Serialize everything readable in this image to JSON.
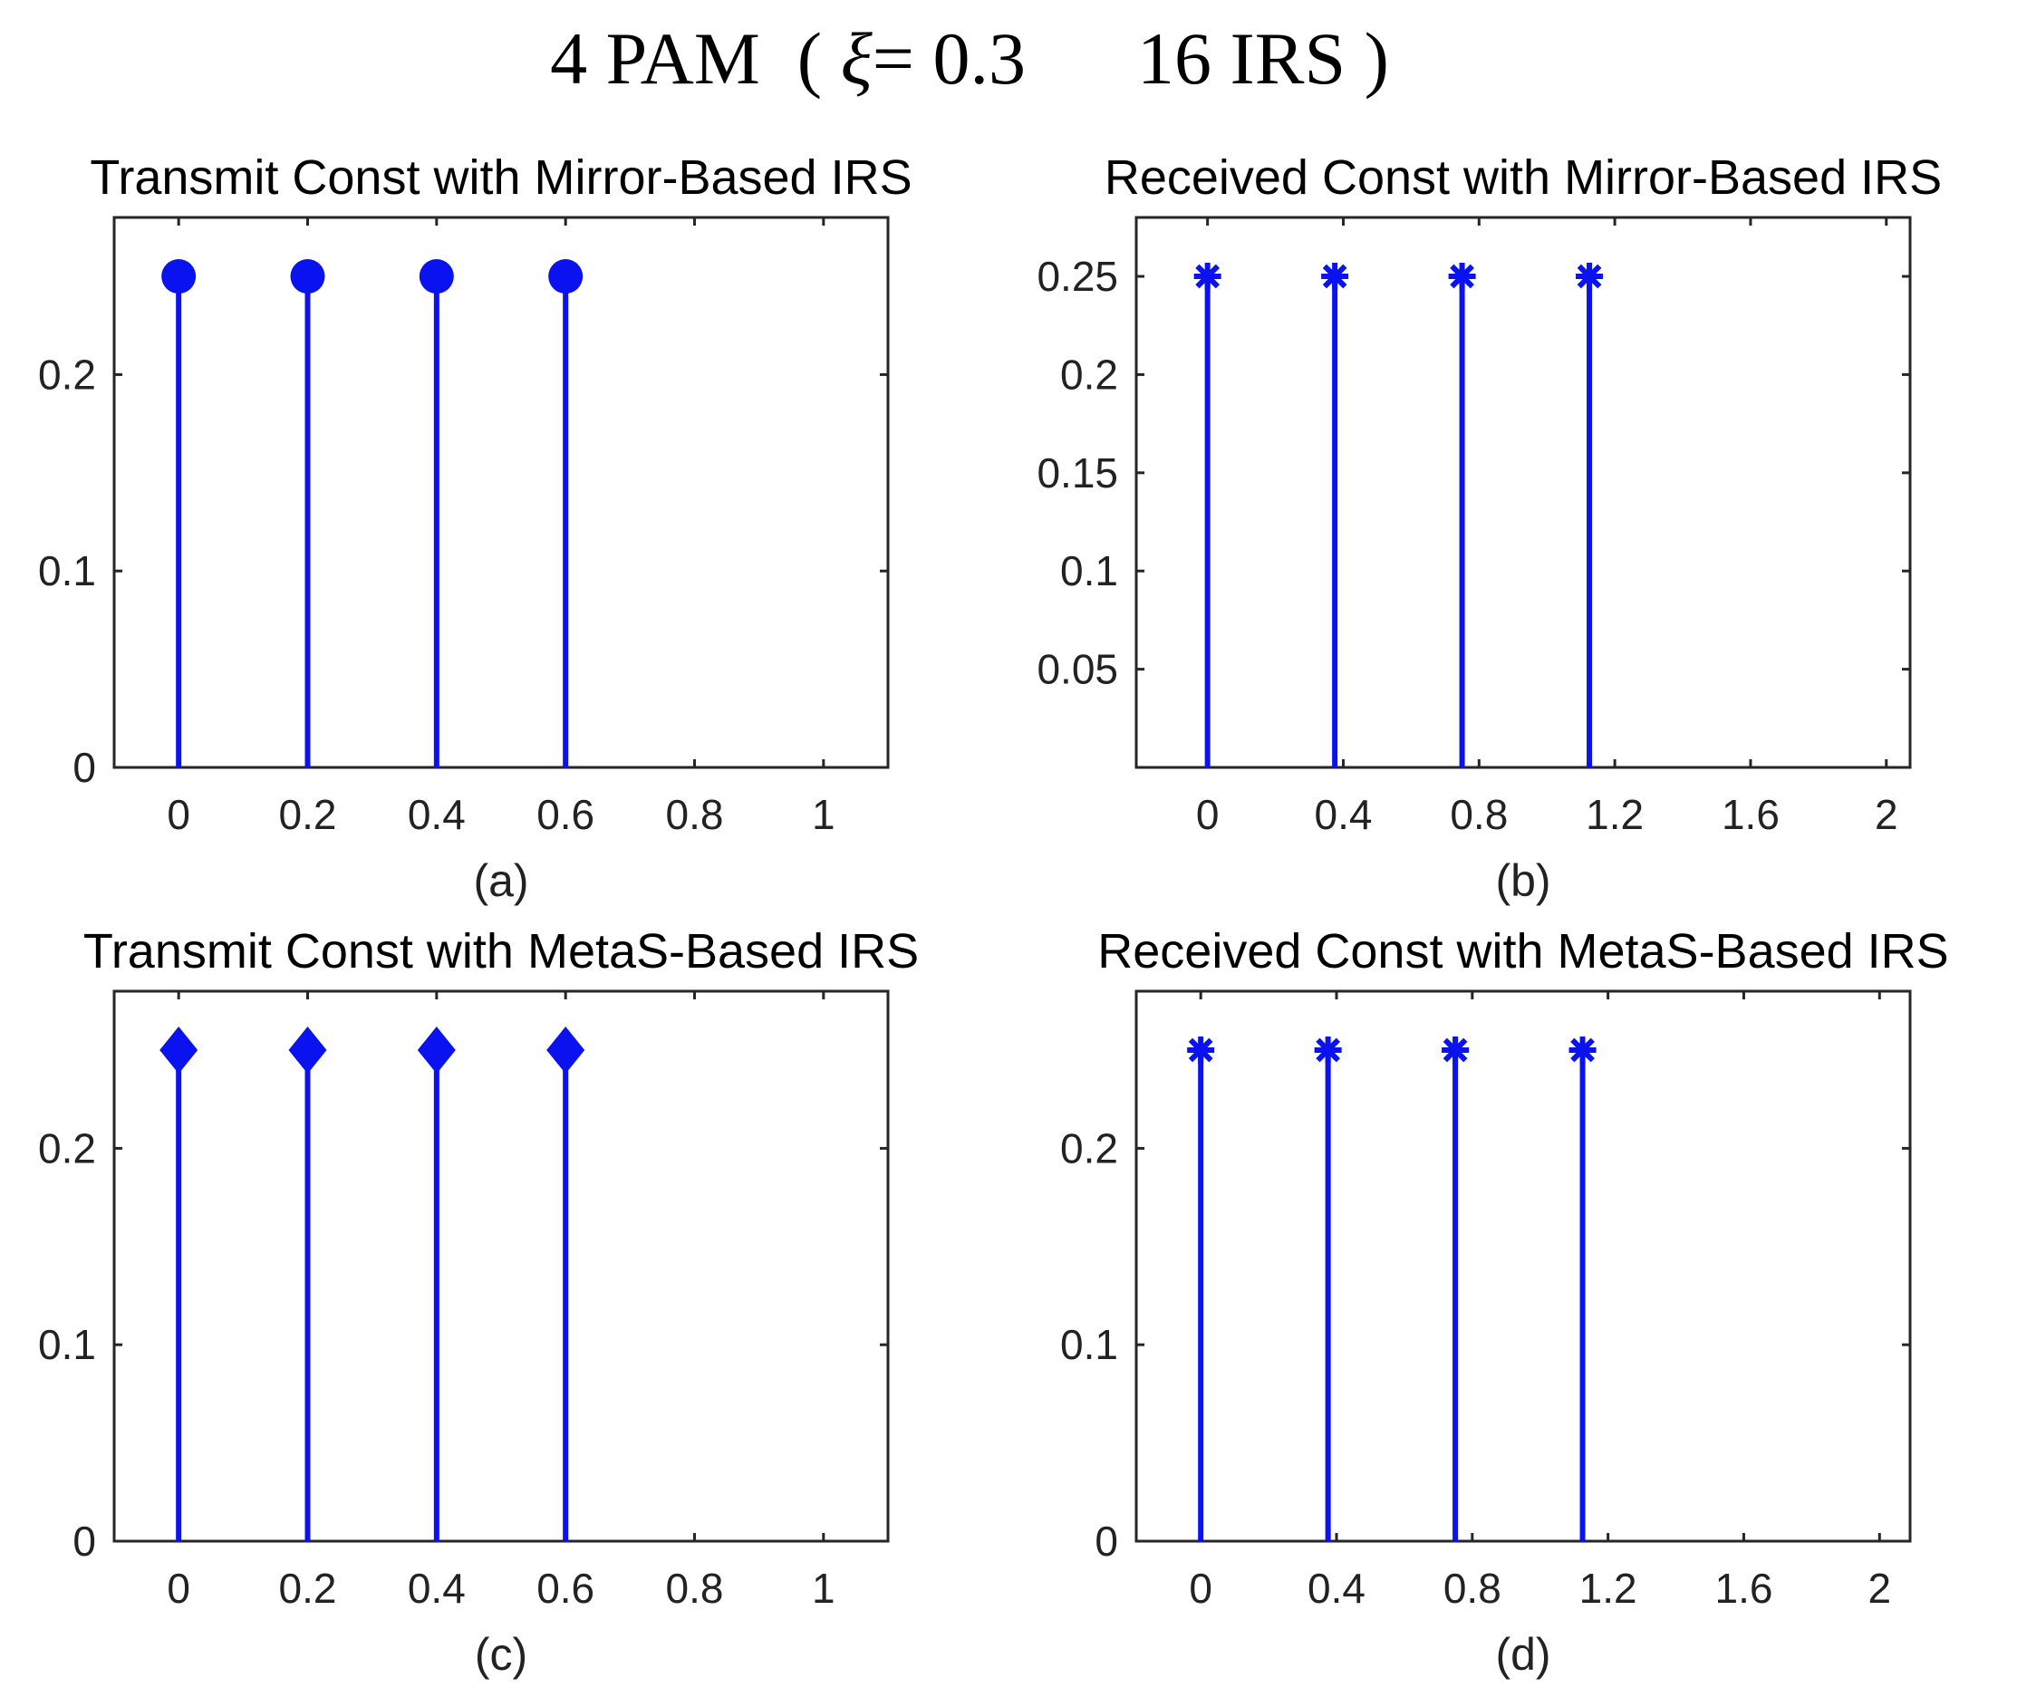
{
  "figure": {
    "title_prefix": "4 PAM  ( ",
    "title_symbol": "ξ",
    "title_suffix": "= 0.3      16 IRS )"
  },
  "colors": {
    "stem": "#0a12f0",
    "axis": "#262626",
    "text": "#222222"
  },
  "chart_data": [
    {
      "id": "a",
      "type": "stem",
      "title": "Transmit Const with Mirror-Based IRS",
      "caption": "(a)",
      "marker": "circle",
      "x": [
        0,
        0.2,
        0.4,
        0.6
      ],
      "y": [
        0.25,
        0.25,
        0.25,
        0.25
      ],
      "xlim": [
        -0.1,
        1.1
      ],
      "ylim": [
        0,
        0.28
      ],
      "xticks": [
        0,
        0.2,
        0.4,
        0.6,
        0.8,
        1
      ],
      "xticklabels": [
        "0",
        "0.2",
        "0.4",
        "0.6",
        "0.8",
        "1"
      ],
      "yticks": [
        0,
        0.1,
        0.2
      ],
      "yticklabels": [
        "0",
        "0.1",
        "0.2"
      ]
    },
    {
      "id": "b",
      "type": "stem",
      "title": "Received Const with Mirror-Based IRS",
      "caption": "(b)",
      "marker": "asterisk",
      "x": [
        0,
        0.375,
        0.75,
        1.125
      ],
      "y": [
        0.25,
        0.25,
        0.25,
        0.25
      ],
      "xlim": [
        -0.21,
        2.07
      ],
      "ylim": [
        0,
        0.28
      ],
      "xticks": [
        0,
        0.4,
        0.8,
        1.2,
        1.6,
        2
      ],
      "xticklabels": [
        "0",
        "0.4",
        "0.8",
        "1.2",
        "1.6",
        "2"
      ],
      "yticks": [
        0.05,
        0.1,
        0.15,
        0.2,
        0.25
      ],
      "yticklabels": [
        "0.05",
        "0.1",
        "0.15",
        "0.2",
        "0.25"
      ]
    },
    {
      "id": "c",
      "type": "stem",
      "title": "Transmit Const with MetaS-Based IRS",
      "caption": "(c)",
      "marker": "diamond",
      "x": [
        0,
        0.2,
        0.4,
        0.6
      ],
      "y": [
        0.25,
        0.25,
        0.25,
        0.25
      ],
      "xlim": [
        -0.1,
        1.1
      ],
      "ylim": [
        0,
        0.28
      ],
      "xticks": [
        0,
        0.2,
        0.4,
        0.6,
        0.8,
        1
      ],
      "xticklabels": [
        "0",
        "0.2",
        "0.4",
        "0.6",
        "0.8",
        "1"
      ],
      "yticks": [
        0,
        0.1,
        0.2
      ],
      "yticklabels": [
        "0",
        "0.1",
        "0.2"
      ]
    },
    {
      "id": "d",
      "type": "stem",
      "title": "Received Const with MetaS-Based IRS",
      "caption": "(d)",
      "marker": "asterisk",
      "x": [
        0,
        0.375,
        0.75,
        1.125
      ],
      "y": [
        0.25,
        0.25,
        0.25,
        0.25
      ],
      "xlim": [
        -0.19,
        2.09
      ],
      "ylim": [
        0,
        0.28
      ],
      "xticks": [
        0,
        0.4,
        0.8,
        1.2,
        1.6,
        2
      ],
      "xticklabels": [
        "0",
        "0.4",
        "0.8",
        "1.2",
        "1.6",
        "2"
      ],
      "yticks": [
        0,
        0.1,
        0.2
      ],
      "yticklabels": [
        "0",
        "0.1",
        "0.2"
      ]
    }
  ]
}
